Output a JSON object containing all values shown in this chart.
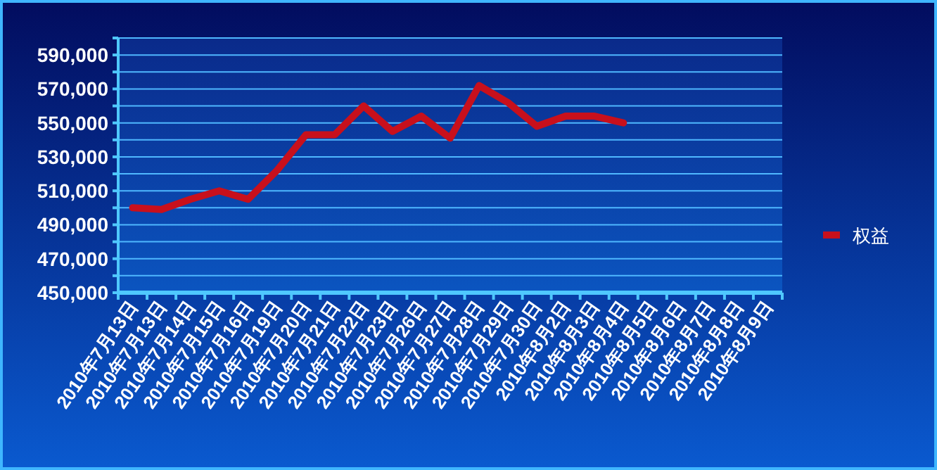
{
  "chart_data": {
    "type": "line",
    "categories": [
      "2010年7月13日",
      "2010年7月13日",
      "2010年7月14日",
      "2010年7月15日",
      "2010年7月16日",
      "2010年7月19日",
      "2010年7月20日",
      "2010年7月21日",
      "2010年7月22日",
      "2010年7月23日",
      "2010年7月26日",
      "2010年7月27日",
      "2010年7月28日",
      "2010年7月29日",
      "2010年7月30日",
      "2010年8月2日",
      "2010年8月3日",
      "2010年8月4日",
      "2010年8月5日",
      "2010年8月6日",
      "2010年8月7日",
      "2010年8月8日",
      "2010年8月9日"
    ],
    "series": [
      {
        "name": "权益",
        "color": "#c8101c",
        "values": [
          500000,
          499000,
          505000,
          510000,
          505000,
          522000,
          543000,
          543000,
          560000,
          545000,
          554000,
          541000,
          572000,
          562000,
          548000,
          554000,
          554000,
          550000,
          null,
          null,
          null,
          null,
          null
        ]
      }
    ],
    "ylim": [
      450000,
      600000
    ],
    "yticks": [
      {
        "value": 450000,
        "label": "450,000"
      },
      {
        "value": 460000,
        "label": null
      },
      {
        "value": 470000,
        "label": "470,000"
      },
      {
        "value": 480000,
        "label": null
      },
      {
        "value": 490000,
        "label": "490,000"
      },
      {
        "value": 500000,
        "label": null
      },
      {
        "value": 510000,
        "label": "510,000"
      },
      {
        "value": 520000,
        "label": null
      },
      {
        "value": 530000,
        "label": "530,000"
      },
      {
        "value": 540000,
        "label": null
      },
      {
        "value": 550000,
        "label": "550,000"
      },
      {
        "value": 560000,
        "label": null
      },
      {
        "value": 570000,
        "label": "570,000"
      },
      {
        "value": 580000,
        "label": null
      },
      {
        "value": 590000,
        "label": "590,000"
      },
      {
        "value": 600000,
        "label": null
      }
    ],
    "grid": "y",
    "legend": "right",
    "marker": "none",
    "line_style": "solid"
  }
}
